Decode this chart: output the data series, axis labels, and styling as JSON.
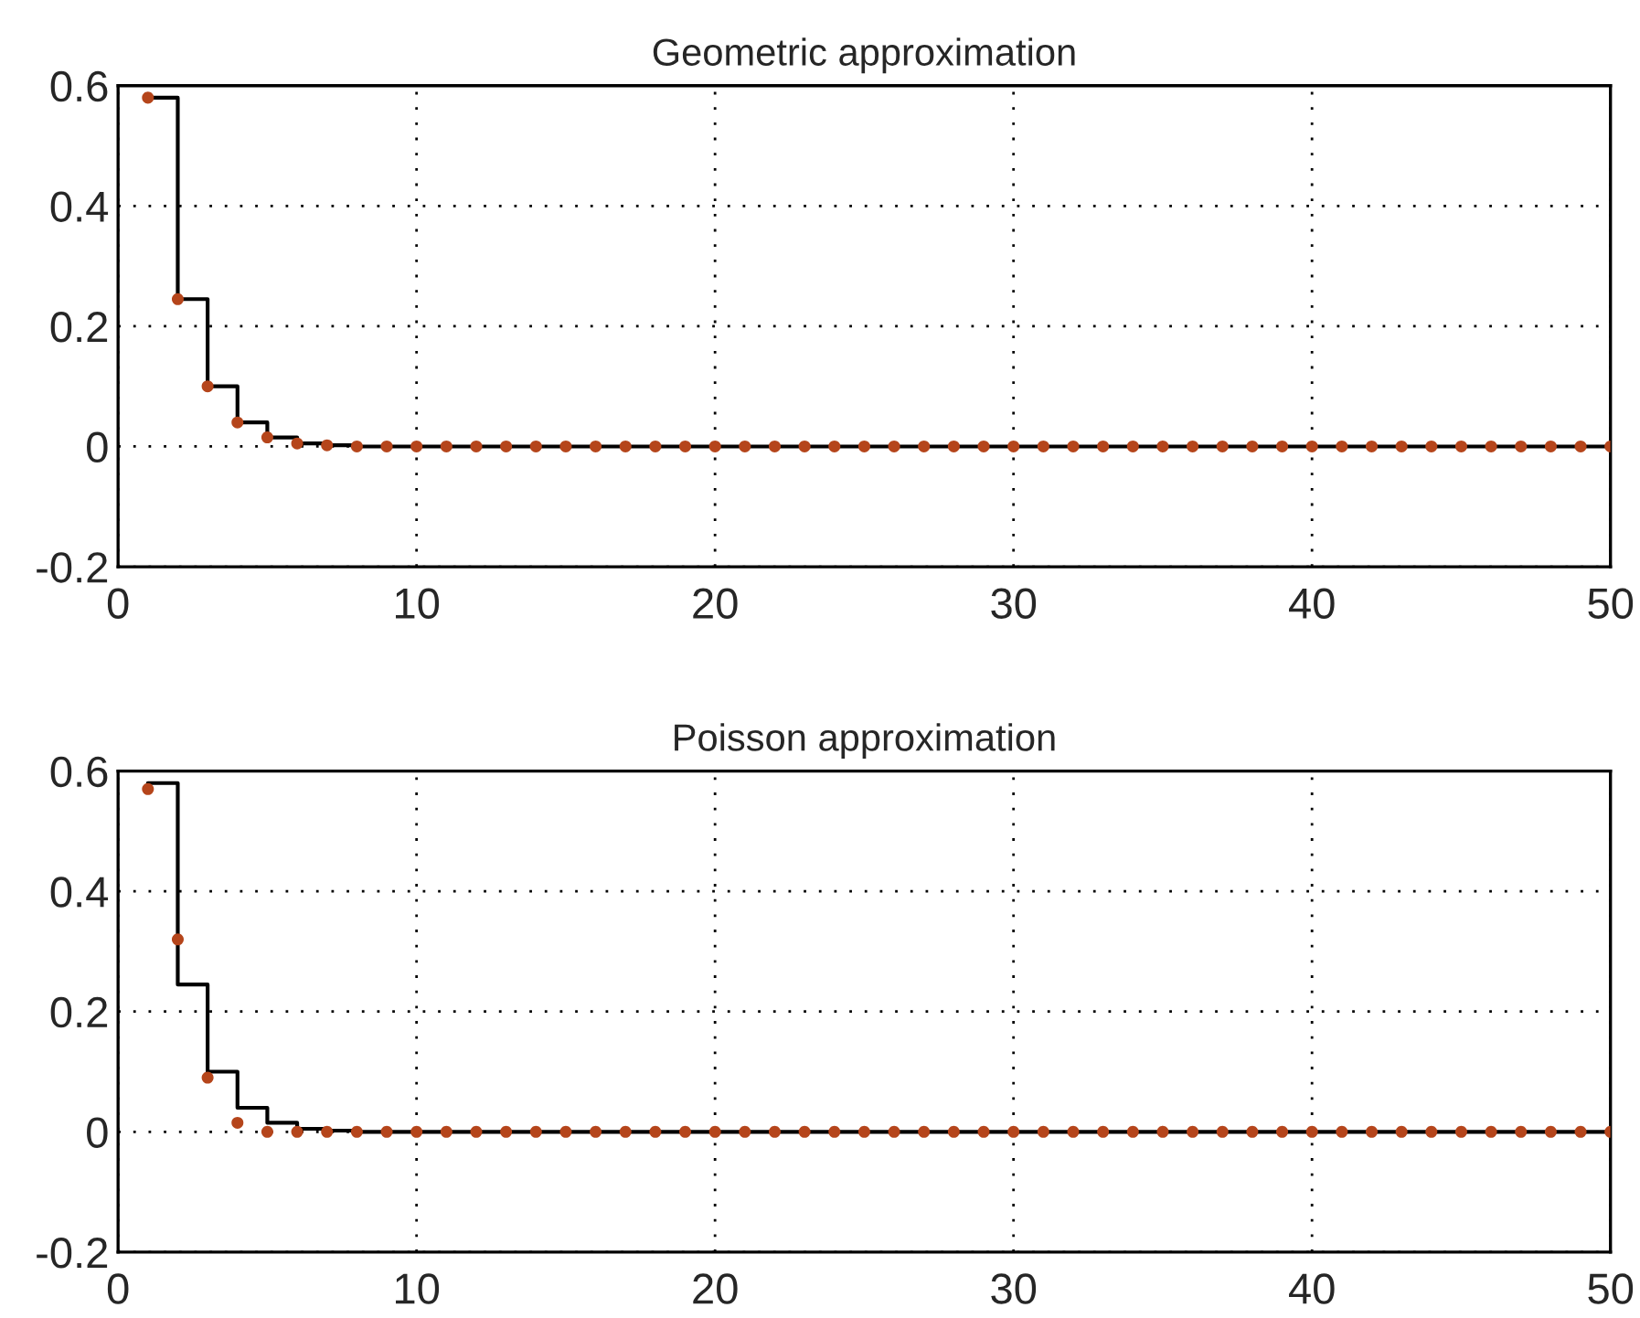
{
  "chart_data": [
    {
      "type": "step",
      "title": "Geometric approximation",
      "x": [
        1,
        2,
        3,
        4,
        5,
        6,
        7,
        8,
        9,
        10,
        11,
        12,
        13,
        14,
        15,
        16,
        17,
        18,
        19,
        20,
        21,
        22,
        23,
        24,
        25,
        26,
        27,
        28,
        29,
        30,
        31,
        32,
        33,
        34,
        35,
        36,
        37,
        38,
        39,
        40,
        41,
        42,
        43,
        44,
        45,
        46,
        47,
        48,
        49,
        50
      ],
      "series": [
        {
          "color": "#000000",
          "marker": "none",
          "values": [
            0.58,
            0.245,
            0.1,
            0.04,
            0.015,
            0.005,
            0.002,
            0,
            0,
            0,
            0,
            0,
            0,
            0,
            0,
            0,
            0,
            0,
            0,
            0,
            0,
            0,
            0,
            0,
            0,
            0,
            0,
            0,
            0,
            0,
            0,
            0,
            0,
            0,
            0,
            0,
            0,
            0,
            0,
            0,
            0,
            0,
            0,
            0,
            0,
            0,
            0,
            0,
            0,
            0
          ]
        },
        {
          "type": "scatter",
          "color": "#b5451b",
          "marker": "circle",
          "values": [
            0.58,
            0.245,
            0.1,
            0.04,
            0.015,
            0.005,
            0.002,
            0,
            0,
            0,
            0,
            0,
            0,
            0,
            0,
            0,
            0,
            0,
            0,
            0,
            0,
            0,
            0,
            0,
            0,
            0,
            0,
            0,
            0,
            0,
            0,
            0,
            0,
            0,
            0,
            0,
            0,
            0,
            0,
            0,
            0,
            0,
            0,
            0,
            0,
            0,
            0,
            0,
            0,
            0
          ]
        }
      ],
      "xlim": [
        0,
        50
      ],
      "xticks": [
        0,
        10,
        20,
        30,
        40,
        50
      ],
      "ylim": [
        -0.2,
        0.6
      ],
      "yticks": [
        -0.2,
        0,
        0.2,
        0.4,
        0.6
      ],
      "grid": true
    },
    {
      "type": "step",
      "title": "Poisson approximation",
      "x": [
        1,
        2,
        3,
        4,
        5,
        6,
        7,
        8,
        9,
        10,
        11,
        12,
        13,
        14,
        15,
        16,
        17,
        18,
        19,
        20,
        21,
        22,
        23,
        24,
        25,
        26,
        27,
        28,
        29,
        30,
        31,
        32,
        33,
        34,
        35,
        36,
        37,
        38,
        39,
        40,
        41,
        42,
        43,
        44,
        45,
        46,
        47,
        48,
        49,
        50
      ],
      "series": [
        {
          "color": "#000000",
          "marker": "none",
          "values": [
            0.58,
            0.245,
            0.1,
            0.04,
            0.015,
            0.005,
            0.002,
            0,
            0,
            0,
            0,
            0,
            0,
            0,
            0,
            0,
            0,
            0,
            0,
            0,
            0,
            0,
            0,
            0,
            0,
            0,
            0,
            0,
            0,
            0,
            0,
            0,
            0,
            0,
            0,
            0,
            0,
            0,
            0,
            0,
            0,
            0,
            0,
            0,
            0,
            0,
            0,
            0,
            0,
            0
          ]
        },
        {
          "type": "scatter",
          "color": "#b5451b",
          "marker": "circle",
          "values": [
            0.57,
            0.32,
            0.09,
            0.015,
            0,
            0,
            0,
            0,
            0,
            0,
            0,
            0,
            0,
            0,
            0,
            0,
            0,
            0,
            0,
            0,
            0,
            0,
            0,
            0,
            0,
            0,
            0,
            0,
            0,
            0,
            0,
            0,
            0,
            0,
            0,
            0,
            0,
            0,
            0,
            0,
            0,
            0,
            0,
            0,
            0,
            0,
            0,
            0,
            0,
            0
          ]
        }
      ],
      "xlim": [
        0,
        50
      ],
      "xticks": [
        0,
        10,
        20,
        30,
        40,
        50
      ],
      "ylim": [
        -0.2,
        0.6
      ],
      "yticks": [
        -0.2,
        0,
        0.2,
        0.4,
        0.6
      ],
      "grid": true
    }
  ]
}
